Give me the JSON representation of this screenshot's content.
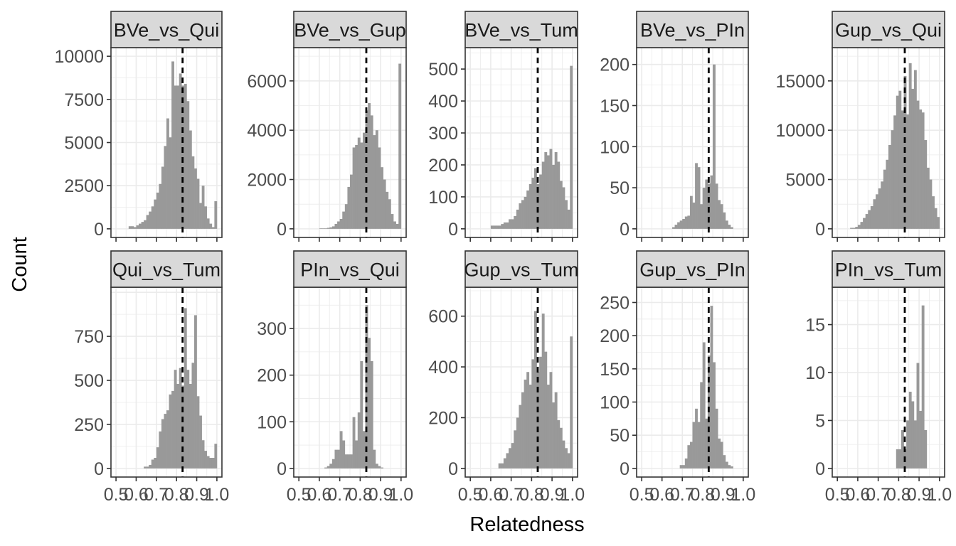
{
  "chart_data": {
    "type": "histogram",
    "xlabel": "Relatedness",
    "ylabel": "Count",
    "xlim": [
      0.5,
      1.0
    ],
    "x_ticks": [
      "0.5",
      "0.6",
      "0.7",
      "0.8",
      "0.9",
      "1.0"
    ],
    "grid": true,
    "bar_color": "#999999",
    "reference_line": {
      "x": 0.83,
      "style": "dashed",
      "color": "#000000"
    },
    "bins": {
      "start": 0.5,
      "width": 0.0125,
      "centers": [
        0.5063,
        0.5188,
        0.5313,
        0.5438,
        0.5563,
        0.5688,
        0.5813,
        0.5938,
        0.6063,
        0.6188,
        0.6313,
        0.6438,
        0.6563,
        0.6688,
        0.6813,
        0.6938,
        0.7063,
        0.7188,
        0.7313,
        0.7438,
        0.7563,
        0.7688,
        0.7813,
        0.7938,
        0.8063,
        0.8188,
        0.8313,
        0.8438,
        0.8563,
        0.8688,
        0.8813,
        0.8938,
        0.9063,
        0.9188,
        0.9313,
        0.9438,
        0.9563,
        0.9688,
        0.9813,
        0.9938
      ]
    },
    "panels": [
      {
        "title": "BVe_vs_Qui",
        "ylim": [
          0,
          10000
        ],
        "y_ticks": [
          "0",
          "2500",
          "5000",
          "7500",
          "10000"
        ],
        "values": [
          0,
          0,
          0,
          0,
          0,
          150,
          150,
          100,
          200,
          300,
          400,
          500,
          800,
          1000,
          1300,
          1700,
          2100,
          2600,
          3600,
          4800,
          6400,
          5300,
          9700,
          8300,
          8300,
          9000,
          8300,
          8400,
          7400,
          5700,
          4200,
          3500,
          2900,
          1500,
          2500,
          1300,
          600,
          300,
          100,
          1600
        ]
      },
      {
        "title": "BVe_vs_Gup",
        "ylim": [
          0,
          7000
        ],
        "y_ticks": [
          "0",
          "2000",
          "4000",
          "6000"
        ],
        "values": [
          0,
          0,
          0,
          0,
          0,
          0,
          0,
          0,
          20,
          20,
          20,
          40,
          60,
          100,
          200,
          300,
          400,
          700,
          1000,
          1700,
          2200,
          3300,
          3400,
          3700,
          3500,
          3900,
          4800,
          5100,
          4600,
          3800,
          4000,
          3300,
          2500,
          2000,
          1500,
          1200,
          600,
          300,
          200,
          6700
        ]
      },
      {
        "title": "BVe_vs_Tum",
        "ylim": [
          0,
          540
        ],
        "y_ticks": [
          "0",
          "100",
          "200",
          "300",
          "400",
          "500"
        ],
        "values": [
          0,
          0,
          0,
          0,
          0,
          0,
          0,
          0,
          10,
          10,
          10,
          10,
          15,
          20,
          20,
          30,
          30,
          40,
          60,
          80,
          90,
          100,
          120,
          140,
          160,
          190,
          140,
          170,
          210,
          240,
          230,
          250,
          200,
          240,
          210,
          150,
          130,
          90,
          60,
          510
        ]
      },
      {
        "title": "BVe_vs_PIn",
        "ylim": [
          0,
          210
        ],
        "y_ticks": [
          "0",
          "50",
          "100",
          "150",
          "200"
        ],
        "values": [
          0,
          0,
          0,
          0,
          0,
          0,
          0,
          0,
          0,
          0,
          0,
          0,
          2,
          5,
          8,
          10,
          12,
          15,
          16,
          40,
          32,
          80,
          75,
          30,
          50,
          60,
          55,
          65,
          200,
          55,
          35,
          30,
          20,
          10,
          5,
          2,
          0,
          0,
          0,
          0
        ]
      },
      {
        "title": "Gup_vs_Qui",
        "ylim": [
          0,
          17500
        ],
        "y_ticks": [
          "0",
          "5000",
          "10000",
          "15000"
        ],
        "values": [
          0,
          0,
          0,
          0,
          0,
          100,
          100,
          200,
          400,
          700,
          1100,
          1500,
          1900,
          2300,
          3000,
          3500,
          4100,
          4800,
          6000,
          7000,
          8500,
          10000,
          11500,
          13500,
          14000,
          12000,
          15500,
          11600,
          16800,
          14200,
          16100,
          13000,
          12100,
          11800,
          9000,
          6200,
          5000,
          3300,
          2100,
          1200
        ]
      }
    ]
  },
  "panels_bottom": [
    {
      "title": "Qui_vs_Tum",
      "ylim": [
        0,
        980
      ],
      "y_ticks": [
        "0",
        "250",
        "500",
        "750"
      ],
      "values": [
        0,
        0,
        0,
        0,
        0,
        0,
        0,
        0,
        0,
        0,
        0,
        10,
        10,
        20,
        50,
        60,
        120,
        210,
        280,
        310,
        330,
        420,
        440,
        560,
        480,
        570,
        470,
        910,
        560,
        480,
        600,
        870,
        410,
        300,
        160,
        100,
        70,
        60,
        60,
        140
      ]
    },
    {
      "title": "PIn_vs_Qui",
      "ylim": [
        0,
        370
      ],
      "y_ticks": [
        "0",
        "100",
        "200",
        "300"
      ],
      "values": [
        0,
        0,
        0,
        0,
        0,
        0,
        0,
        0,
        0,
        0,
        2,
        5,
        10,
        20,
        40,
        40,
        80,
        60,
        30,
        30,
        30,
        110,
        60,
        120,
        230,
        80,
        350,
        280,
        230,
        40,
        10,
        5,
        2,
        0,
        0,
        0,
        0,
        0,
        0,
        0
      ]
    },
    {
      "title": "Gup_vs_Tum",
      "ylim": [
        0,
        680
      ],
      "y_ticks": [
        "0",
        "200",
        "400",
        "600"
      ],
      "values": [
        0,
        0,
        0,
        0,
        0,
        0,
        0,
        0,
        0,
        0,
        0,
        20,
        20,
        40,
        60,
        80,
        100,
        150,
        200,
        250,
        300,
        350,
        380,
        330,
        430,
        620,
        380,
        440,
        610,
        460,
        330,
        380,
        260,
        300,
        190,
        160,
        110,
        80,
        60,
        520
      ]
    },
    {
      "title": "Gup_vs_PIn",
      "ylim": [
        0,
        260
      ],
      "y_ticks": [
        "0",
        "50",
        "100",
        "150",
        "200",
        "250"
      ],
      "values": [
        0,
        0,
        0,
        0,
        0,
        0,
        0,
        0,
        0,
        0,
        0,
        0,
        0,
        0,
        0,
        5,
        5,
        15,
        35,
        40,
        70,
        90,
        70,
        130,
        190,
        75,
        170,
        245,
        160,
        90,
        45,
        40,
        20,
        10,
        5,
        3,
        0,
        0,
        0,
        0
      ]
    },
    {
      "title": "PIn_vs_Tum",
      "ylim": [
        0,
        18
      ],
      "y_ticks": [
        "0",
        "5",
        "10",
        "15"
      ],
      "values": [
        0,
        0,
        0,
        0,
        0,
        0,
        0,
        0,
        0,
        0,
        0,
        0,
        0,
        0,
        0,
        0,
        0,
        0,
        0,
        0,
        0,
        0,
        0,
        2,
        2,
        4,
        2,
        5,
        8,
        7,
        5,
        11,
        6,
        17,
        4,
        0,
        0,
        0,
        0,
        0
      ]
    }
  ]
}
